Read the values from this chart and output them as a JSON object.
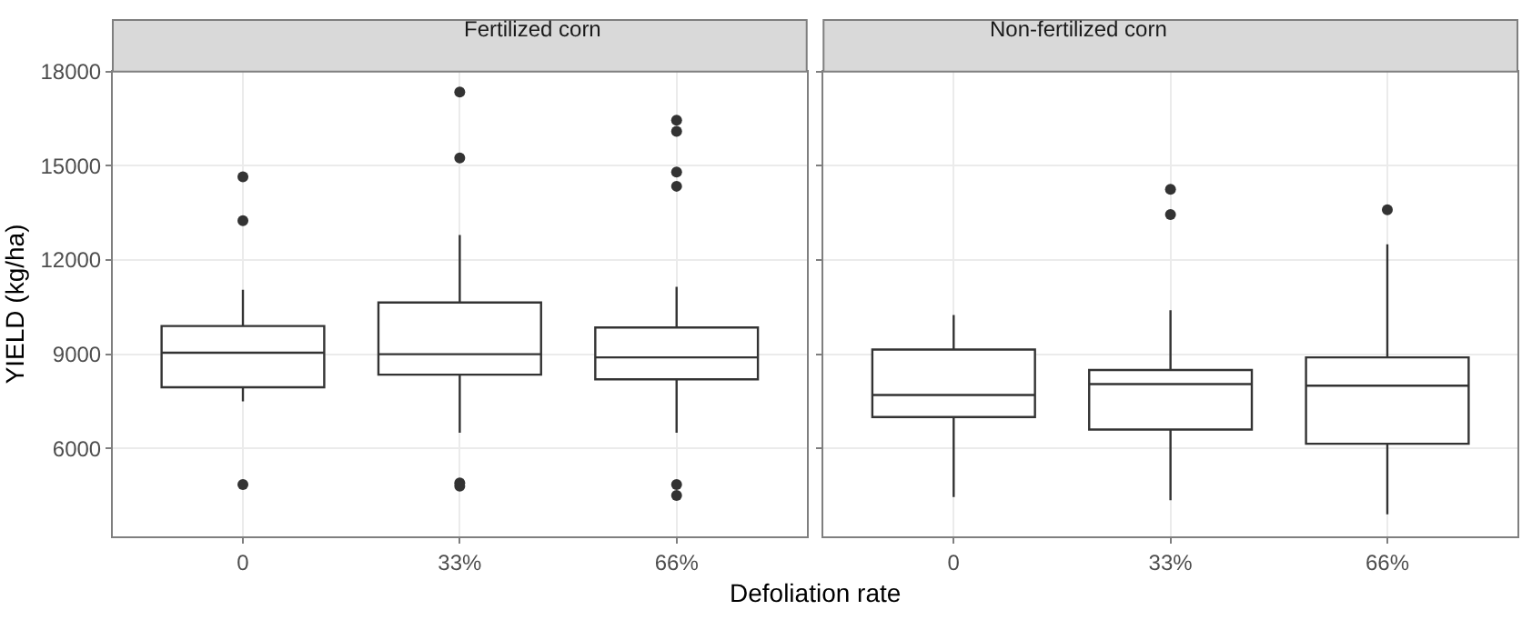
{
  "chart_data": [
    {
      "type": "box",
      "title": "Fertilized corn",
      "xlabel": "Defoliation rate",
      "ylabel": "YIELD (kg/ha)",
      "categories": [
        "0",
        "33%",
        "66%"
      ],
      "ylim": [
        3200,
        18000
      ],
      "yticks": [
        6000,
        9000,
        12000,
        15000,
        18000
      ],
      "grid": true,
      "color": "#333333",
      "boxes": [
        {
          "low": 7500,
          "q1": 7950,
          "median": 9050,
          "q3": 9900,
          "high": 11050,
          "outliers": [
            14650,
            13250,
            4850
          ]
        },
        {
          "low": 6500,
          "q1": 8350,
          "median": 9000,
          "q3": 10650,
          "high": 12800,
          "outliers": [
            17350,
            15250,
            4900,
            4800
          ]
        },
        {
          "low": 6500,
          "q1": 8200,
          "median": 8900,
          "q3": 9850,
          "high": 11150,
          "outliers": [
            16450,
            16100,
            14800,
            14350,
            4850,
            4500
          ]
        }
      ]
    },
    {
      "type": "box",
      "title": "Non-fertilized corn",
      "categories": [
        "0",
        "33%",
        "66%"
      ],
      "ylim": [
        3200,
        18000
      ],
      "yticks": [
        6000,
        9000,
        12000,
        15000,
        18000
      ],
      "tick_labels": "x",
      "grid": true,
      "color": "#333333",
      "boxes": [
        {
          "low": 4450,
          "q1": 7000,
          "median": 7700,
          "q3": 9150,
          "high": 10250
        },
        {
          "low": 4350,
          "q1": 6600,
          "median": 8050,
          "q3": 8500,
          "high": 10400,
          "outliers": [
            14250,
            13450
          ]
        },
        {
          "low": 3900,
          "q1": 6150,
          "median": 8000,
          "q3": 8900,
          "high": 12500,
          "outliers": [
            13600
          ]
        }
      ]
    }
  ]
}
